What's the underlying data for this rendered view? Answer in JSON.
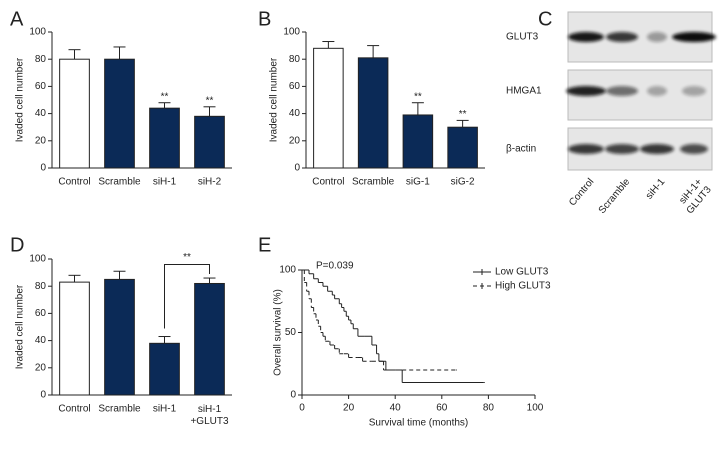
{
  "chart_data": [
    {
      "type": "bar",
      "panel": "A",
      "y_label": "Ivaded cell number",
      "categories": [
        "Control",
        "Scramble",
        "siH-1",
        "siH-2"
      ],
      "values": [
        80,
        80,
        44,
        38
      ],
      "errors": [
        7,
        9,
        4,
        7
      ],
      "colors": [
        "#ffffff",
        "#0b2a57",
        "#0b2a57",
        "#0b2a57"
      ],
      "significance": [
        null,
        null,
        "**",
        "**"
      ],
      "ylim": [
        0,
        100
      ],
      "yticks": [
        0,
        20,
        40,
        60,
        80,
        100
      ]
    },
    {
      "type": "bar",
      "panel": "B",
      "y_label": "Ivaded cell number",
      "categories": [
        "Control",
        "Scramble",
        "siG-1",
        "siG-2"
      ],
      "values": [
        88,
        81,
        39,
        30
      ],
      "errors": [
        5,
        9,
        9,
        5
      ],
      "colors": [
        "#ffffff",
        "#0b2a57",
        "#0b2a57",
        "#0b2a57"
      ],
      "significance": [
        null,
        null,
        "**",
        "**"
      ],
      "ylim": [
        0,
        100
      ],
      "yticks": [
        0,
        20,
        40,
        60,
        80,
        100
      ]
    },
    {
      "type": "bar",
      "panel": "D",
      "y_label": "Ivaded cell number",
      "categories": [
        "Control",
        "Scramble",
        "siH-1",
        "siH-1\n+GLUT3"
      ],
      "values": [
        83,
        85,
        38,
        82
      ],
      "errors": [
        5,
        6,
        5,
        4
      ],
      "colors": [
        "#ffffff",
        "#0b2a57",
        "#0b2a57",
        "#0b2a57"
      ],
      "bracket_label": "**",
      "ylim": [
        0,
        100
      ],
      "yticks": [
        0,
        20,
        40,
        60,
        80,
        100
      ]
    },
    {
      "type": "survival",
      "panel": "E",
      "x_label": "Survival time (months)",
      "y_label": "Overall survival (%)",
      "annotation": "P=0.039",
      "series": [
        {
          "name": "Low GLUT3",
          "color": "#222222",
          "style": "solid",
          "x": [
            0,
            3,
            5,
            7,
            9,
            11,
            13,
            14,
            16,
            17,
            18,
            19,
            20,
            21,
            22,
            24,
            27,
            30,
            32,
            33,
            36,
            40,
            43,
            78
          ],
          "values": [
            100,
            97,
            93,
            90,
            87,
            83,
            80,
            77,
            73,
            70,
            67,
            63,
            60,
            57,
            53,
            47,
            47,
            40,
            33,
            27,
            20,
            20,
            10,
            10
          ]
        },
        {
          "name": "High GLUT3",
          "color": "#222222",
          "style": "dashed",
          "x": [
            0,
            1,
            2,
            3,
            4,
            5,
            6,
            7,
            8,
            9,
            10,
            12,
            14,
            16,
            18,
            20,
            24,
            26,
            30,
            35,
            37,
            66
          ],
          "values": [
            100,
            90,
            83,
            77,
            70,
            65,
            60,
            55,
            50,
            47,
            43,
            40,
            37,
            33,
            33,
            30,
            30,
            27,
            27,
            20,
            20,
            20
          ]
        }
      ],
      "xlim": [
        0,
        100
      ],
      "xticks": [
        0,
        20,
        40,
        60,
        80,
        100
      ],
      "ylim": [
        0,
        100
      ],
      "yticks": [
        0,
        50,
        100
      ]
    }
  ],
  "blot": {
    "panel": "C",
    "rows": [
      "GLUT3",
      "HMGA1",
      "β-actin"
    ],
    "lanes": [
      "Control",
      "Scramble",
      "siH-1",
      "siH-1+\nGLUT3"
    ]
  }
}
